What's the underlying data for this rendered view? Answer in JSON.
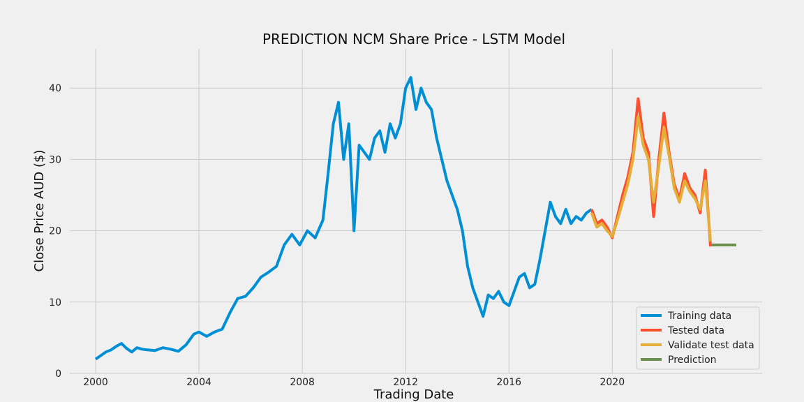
{
  "chart_data": {
    "type": "line",
    "title": "PREDICTION NCM Share Price - LSTM Model",
    "xlabel": "Trading Date",
    "ylabel": "Close Price AUD ($)",
    "xlim": [
      1999.0,
      2025.8
    ],
    "ylim": [
      0,
      45.5
    ],
    "x_ticks": [
      2000,
      2004,
      2008,
      2012,
      2016,
      2020
    ],
    "y_ticks": [
      0,
      10,
      20,
      30,
      40
    ],
    "grid": true,
    "legend_position": "bottom-right",
    "series": [
      {
        "name": "Training data",
        "color": "#008fd5",
        "x": [
          2000.0,
          2000.2,
          2000.4,
          2000.6,
          2000.8,
          2001.0,
          2001.2,
          2001.4,
          2001.6,
          2001.8,
          2002.0,
          2002.3,
          2002.6,
          2002.9,
          2003.2,
          2003.5,
          2003.8,
          2004.0,
          2004.3,
          2004.6,
          2004.9,
          2005.2,
          2005.5,
          2005.8,
          2006.1,
          2006.4,
          2006.7,
          2007.0,
          2007.3,
          2007.6,
          2007.9,
          2008.2,
          2008.5,
          2008.8,
          2009.0,
          2009.2,
          2009.4,
          2009.6,
          2009.8,
          2010.0,
          2010.2,
          2010.4,
          2010.6,
          2010.8,
          2011.0,
          2011.2,
          2011.4,
          2011.6,
          2011.8,
          2012.0,
          2012.2,
          2012.4,
          2012.6,
          2012.8,
          2013.0,
          2013.2,
          2013.4,
          2013.6,
          2013.8,
          2014.0,
          2014.2,
          2014.4,
          2014.6,
          2014.8,
          2015.0,
          2015.2,
          2015.4,
          2015.6,
          2015.8,
          2016.0,
          2016.2,
          2016.4,
          2016.6,
          2016.8,
          2017.0,
          2017.2,
          2017.4,
          2017.6,
          2017.8,
          2018.0,
          2018.2,
          2018.4,
          2018.6,
          2018.8,
          2019.0,
          2019.2
        ],
        "values": [
          2.0,
          2.5,
          3.0,
          3.3,
          3.8,
          4.2,
          3.5,
          3.0,
          3.6,
          3.4,
          3.3,
          3.2,
          3.6,
          3.4,
          3.1,
          4.0,
          5.5,
          5.8,
          5.2,
          5.8,
          6.2,
          8.5,
          10.5,
          10.8,
          12.0,
          13.5,
          14.2,
          15.0,
          18.0,
          19.5,
          18.0,
          20.0,
          19.0,
          21.5,
          28.0,
          35.0,
          38.0,
          30.0,
          35.0,
          20.0,
          32.0,
          31.0,
          30.0,
          33.0,
          34.0,
          31.0,
          35.0,
          33.0,
          35.0,
          40.0,
          41.5,
          37.0,
          40.0,
          38.0,
          37.0,
          33.0,
          30.0,
          27.0,
          25.0,
          23.0,
          20.0,
          15.0,
          12.0,
          10.0,
          8.0,
          11.0,
          10.5,
          11.5,
          10.0,
          9.5,
          11.5,
          13.5,
          14.0,
          12.0,
          12.5,
          16.0,
          20.0,
          24.0,
          22.0,
          21.0,
          23.0,
          21.0,
          22.0,
          21.5,
          22.5,
          23.0
        ]
      },
      {
        "name": "Tested data",
        "color": "#fc4f30",
        "x": [
          2019.2,
          2019.4,
          2019.6,
          2019.8,
          2020.0,
          2020.2,
          2020.4,
          2020.6,
          2020.8,
          2021.0,
          2021.2,
          2021.4,
          2021.6,
          2021.8,
          2022.0,
          2022.2,
          2022.4,
          2022.6,
          2022.8,
          2023.0,
          2023.2,
          2023.4,
          2023.6,
          2023.8
        ],
        "values": [
          23.0,
          21.0,
          21.5,
          20.5,
          19.0,
          22.0,
          25.0,
          27.5,
          31.0,
          38.5,
          33.0,
          31.0,
          22.0,
          30.0,
          36.5,
          31.0,
          26.5,
          24.5,
          28.0,
          26.0,
          25.0,
          22.5,
          28.5,
          17.8
        ]
      },
      {
        "name": "Validate test data",
        "color": "#e5ae38",
        "x": [
          2019.2,
          2019.4,
          2019.6,
          2019.8,
          2020.0,
          2020.2,
          2020.4,
          2020.6,
          2020.8,
          2021.0,
          2021.2,
          2021.4,
          2021.6,
          2021.8,
          2022.0,
          2022.2,
          2022.4,
          2022.6,
          2022.8,
          2023.0,
          2023.2,
          2023.4,
          2023.6,
          2023.8
        ],
        "values": [
          22.5,
          20.5,
          21.0,
          20.0,
          19.2,
          21.5,
          24.0,
          26.5,
          30.0,
          36.0,
          32.0,
          30.0,
          24.0,
          29.0,
          34.5,
          30.5,
          26.0,
          24.0,
          27.0,
          25.5,
          24.5,
          23.0,
          27.0,
          18.5
        ]
      },
      {
        "name": "Prediction",
        "color": "#6d904f",
        "x": [
          2023.85,
          2024.2,
          2024.5,
          2024.8
        ],
        "values": [
          18.0,
          18.0,
          18.0,
          18.0
        ]
      }
    ]
  }
}
